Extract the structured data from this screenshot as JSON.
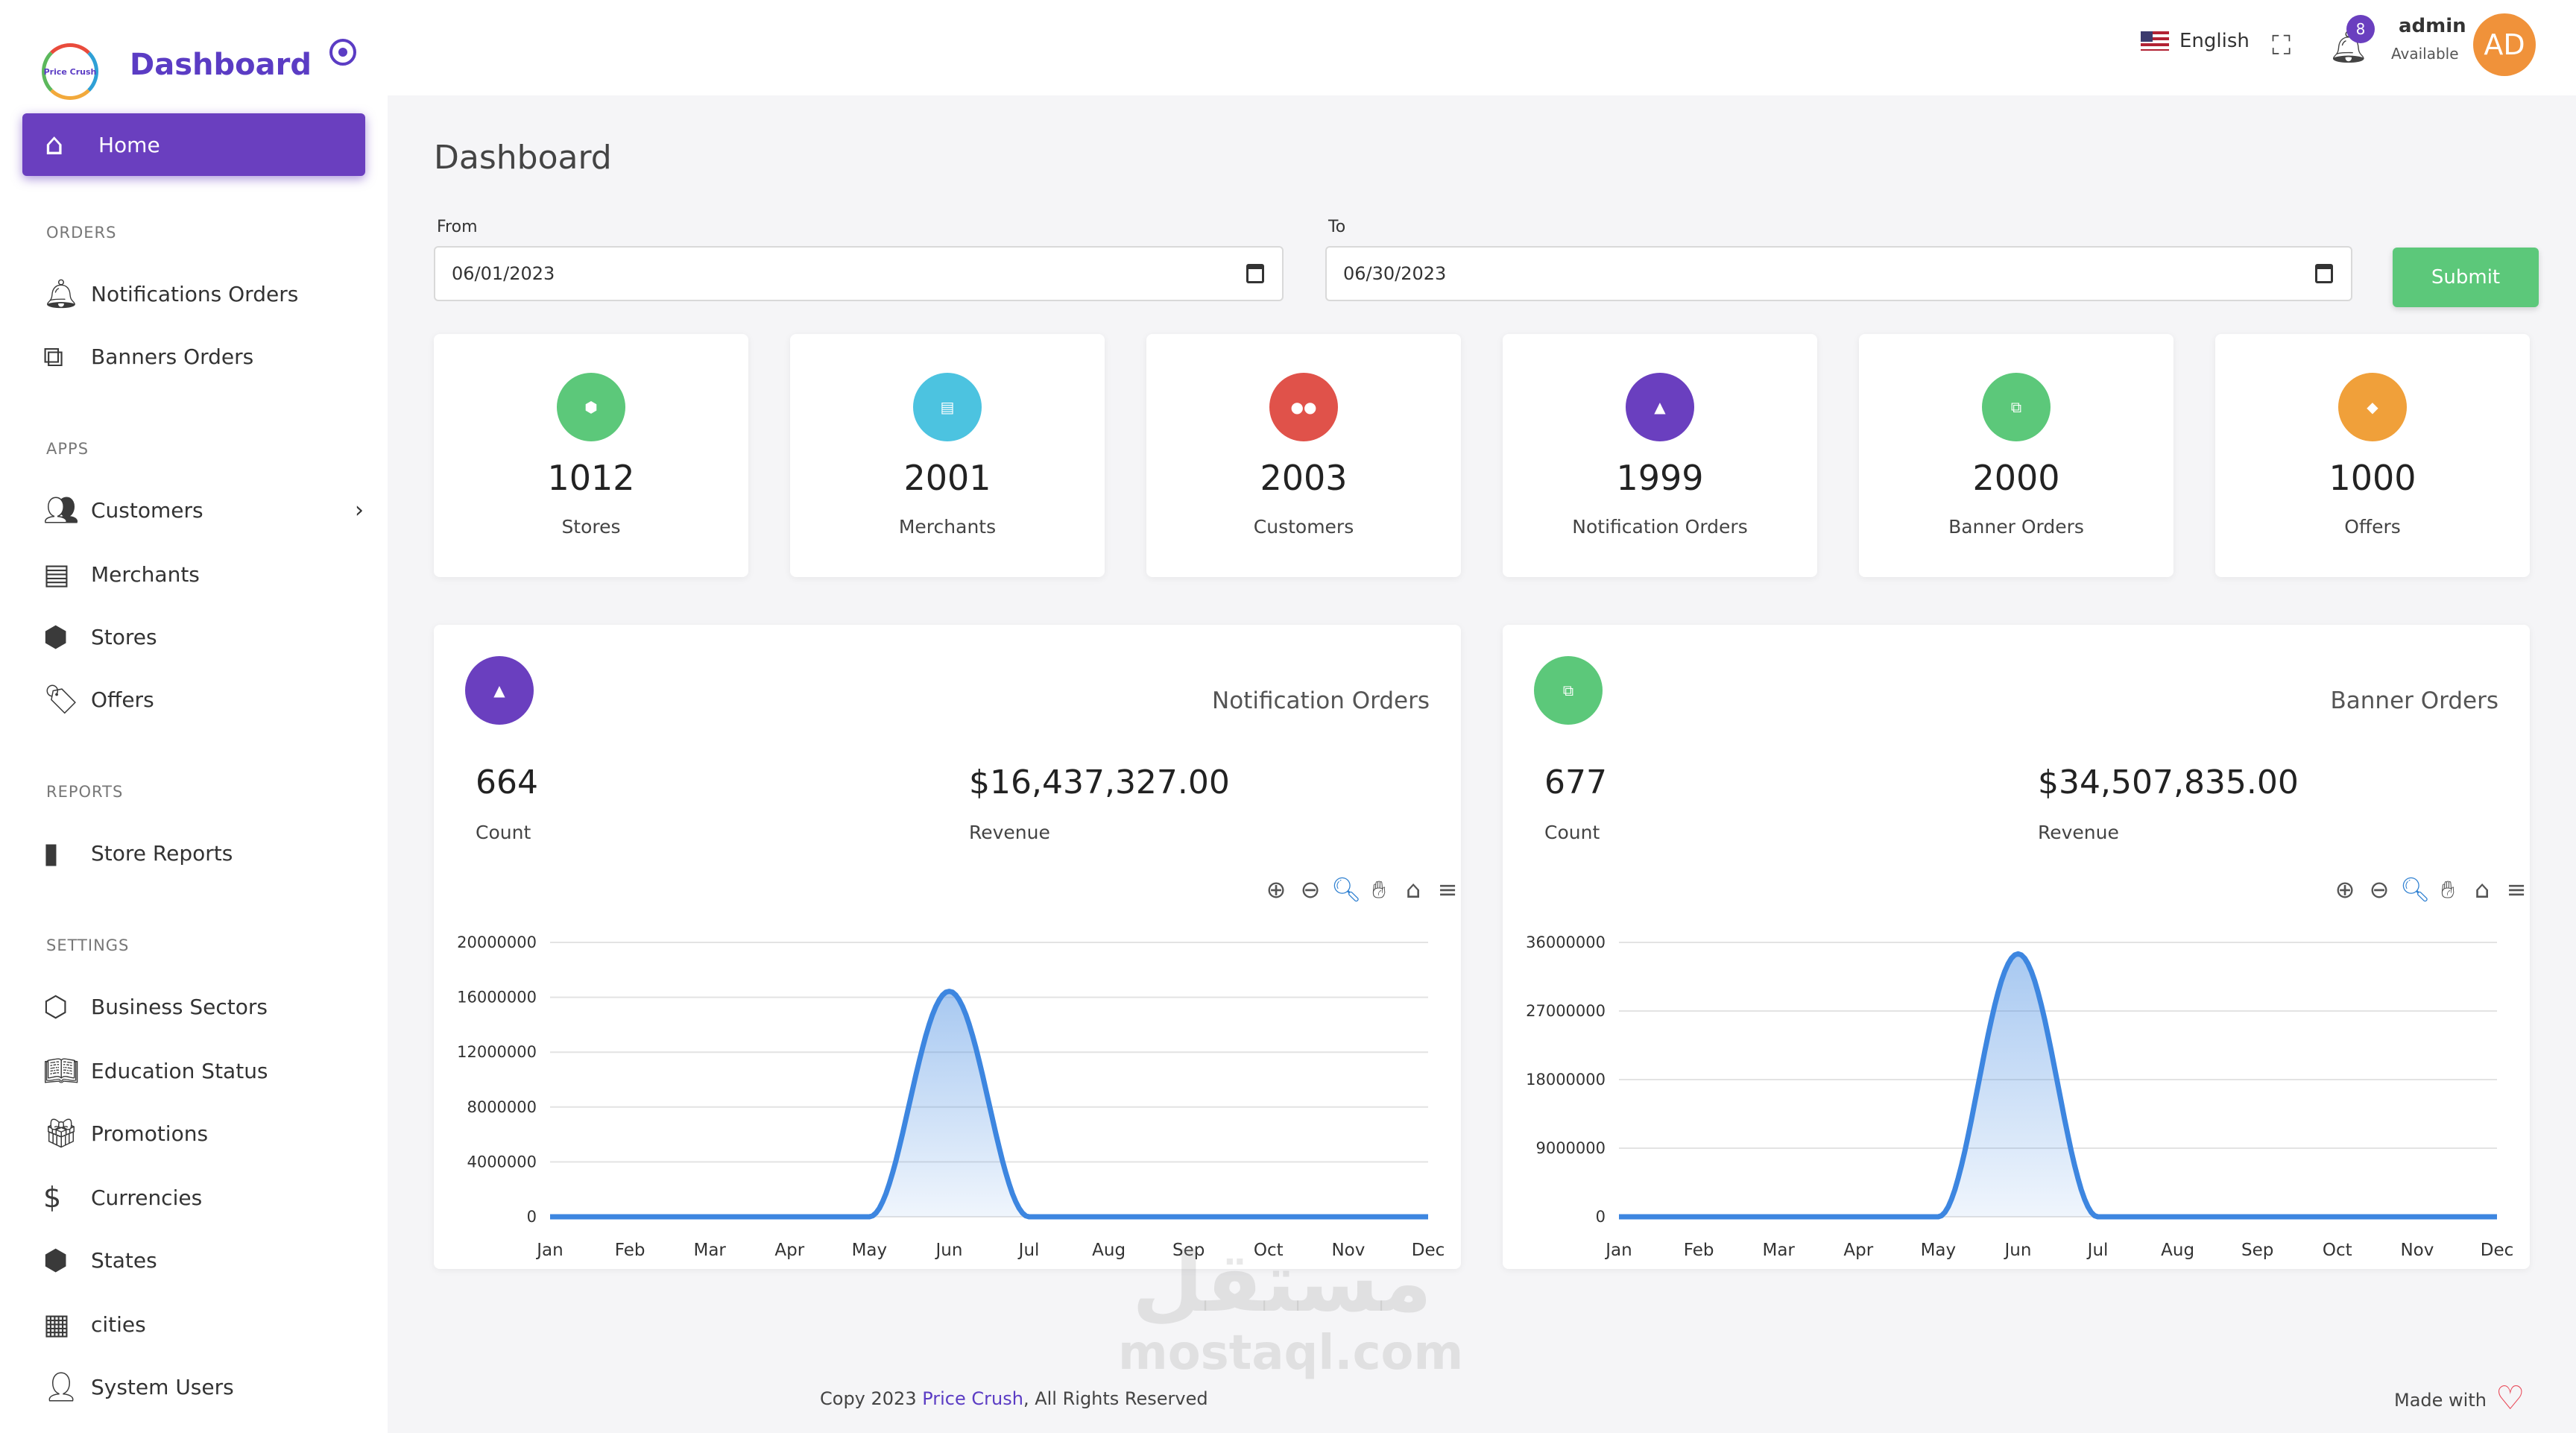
{
  "brand": {
    "logo_text": "Price Crush",
    "title": "Dashboard"
  },
  "sidebar": {
    "home": {
      "label": "Home"
    },
    "sections": {
      "orders": "ORDERS",
      "apps": "APPS",
      "reports": "REPORTS",
      "settings": "SETTINGS"
    },
    "items": {
      "notifications_orders": "Notifications Orders",
      "banners_orders": "Banners Orders",
      "customers": "Customers",
      "merchants": "Merchants",
      "stores": "Stores",
      "offers": "Offers",
      "store_reports": "Store Reports",
      "business_sectors": "Business Sectors",
      "education_status": "Education Status",
      "promotions": "Promotions",
      "currencies": "Currencies",
      "states": "States",
      "cities": "cities",
      "system_users": "System Users"
    }
  },
  "topbar": {
    "language": "English",
    "notification_count": "8",
    "user_name": "admin",
    "user_status": "Available",
    "avatar_initials": "AD"
  },
  "main": {
    "title": "Dashboard",
    "filter": {
      "from_label": "From",
      "from_value": "06/01/2023",
      "to_label": "To",
      "to_value": "06/30/2023",
      "submit_label": "Submit"
    },
    "stats": [
      {
        "value": "1012",
        "label": "Stores",
        "color": "#5cc87a"
      },
      {
        "value": "2001",
        "label": "Merchants",
        "color": "#4cc3e0"
      },
      {
        "value": "2003",
        "label": "Customers",
        "color": "#e0524a"
      },
      {
        "value": "1999",
        "label": "Notification Orders",
        "color": "#6a3fbf"
      },
      {
        "value": "2000",
        "label": "Banner Orders",
        "color": "#5cc87a"
      },
      {
        "value": "1000",
        "label": "Offers",
        "color": "#f0a03a"
      }
    ],
    "charts": {
      "notification": {
        "title": "Notification Orders",
        "count": "664",
        "count_label": "Count",
        "revenue": "$16,437,327.00",
        "revenue_label": "Revenue",
        "icon_color": "#6a3fbf"
      },
      "banner": {
        "title": "Banner Orders",
        "count": "677",
        "count_label": "Count",
        "revenue": "$34,507,835.00",
        "revenue_label": "Revenue",
        "icon_color": "#5cc87a"
      }
    }
  },
  "footer": {
    "copy_prefix": "Copy 2023 ",
    "copy_brand": "Price Crush",
    "copy_suffix": ", All Rights Reserved",
    "made_with": "Made with"
  },
  "watermark": {
    "arabic": "مستقل",
    "latin": "mostaql.com"
  },
  "chart_data": [
    {
      "type": "area",
      "title": "",
      "categories": [
        "Jan",
        "Feb",
        "Mar",
        "Apr",
        "May",
        "Jun",
        "Jul",
        "Aug",
        "Sep",
        "Oct",
        "Nov",
        "Dec"
      ],
      "values": [
        0,
        0,
        0,
        0,
        0,
        16437327,
        0,
        0,
        0,
        0,
        0,
        0
      ],
      "yticks": [
        "20000000",
        "16000000",
        "12000000",
        "8000000",
        "4000000",
        "0"
      ],
      "ylim": [
        0,
        20000000
      ],
      "grid": true,
      "color": "#3d86e0"
    },
    {
      "type": "area",
      "title": "",
      "categories": [
        "Jan",
        "Feb",
        "Mar",
        "Apr",
        "May",
        "Jun",
        "Jul",
        "Aug",
        "Sep",
        "Oct",
        "Nov",
        "Dec"
      ],
      "values": [
        0,
        0,
        0,
        0,
        0,
        34507835,
        0,
        0,
        0,
        0,
        0,
        0
      ],
      "yticks": [
        "36000000",
        "27000000",
        "18000000",
        "9000000",
        "0"
      ],
      "ylim": [
        0,
        36000000
      ],
      "grid": true,
      "color": "#3d86e0"
    }
  ]
}
